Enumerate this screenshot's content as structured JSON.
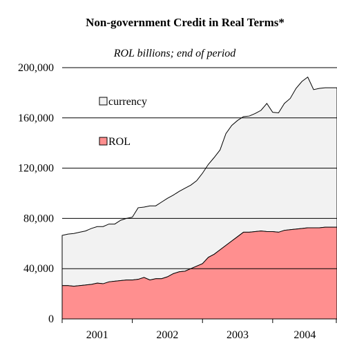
{
  "chart_data": {
    "type": "area",
    "stacked": true,
    "title": "Non-government Credit in Real Terms*",
    "subtitle": "ROL billions; end of period",
    "xlabel": "",
    "ylabel": "",
    "ylim": [
      0,
      200000
    ],
    "yticks": [
      "0",
      "40,000",
      "80,000",
      "120,000",
      "160,000",
      "200,000"
    ],
    "xticks": [
      "2001",
      "2002",
      "2003",
      "2004"
    ],
    "grid": "horizontal",
    "legend": "top-left",
    "x": [
      "2001-01",
      "2001-02",
      "2001-03",
      "2001-04",
      "2001-05",
      "2001-06",
      "2001-07",
      "2001-08",
      "2001-09",
      "2001-10",
      "2001-11",
      "2001-12",
      "2002-01",
      "2002-02",
      "2002-03",
      "2002-04",
      "2002-05",
      "2002-06",
      "2002-07",
      "2002-08",
      "2002-09",
      "2002-10",
      "2002-11",
      "2002-12",
      "2003-01",
      "2003-02",
      "2003-03",
      "2003-04",
      "2003-05",
      "2003-06",
      "2003-07",
      "2003-08",
      "2003-09",
      "2003-10",
      "2003-11",
      "2003-12",
      "2004-01",
      "2004-02",
      "2004-03",
      "2004-04",
      "2004-05",
      "2004-06",
      "2004-07",
      "2004-08",
      "2004-09",
      "2004-10",
      "2004-11",
      "2004-12"
    ],
    "series": [
      {
        "name": "ROL",
        "color": "#ff8f8f",
        "values": [
          26500,
          26500,
          26000,
          26500,
          27000,
          27500,
          28500,
          28000,
          29500,
          30000,
          30500,
          31000,
          31000,
          31500,
          33000,
          31000,
          32000,
          32000,
          33500,
          36000,
          37500,
          38000,
          40000,
          42000,
          44000,
          49000,
          51500,
          55000,
          58500,
          62000,
          65500,
          69000,
          69000,
          69500,
          70000,
          69500,
          69500,
          69000,
          70500,
          71000,
          71500,
          72000,
          72500,
          72500,
          72500,
          73000,
          73000,
          73000
        ]
      },
      {
        "name": "currency",
        "color": "#f2f2f2",
        "values": [
          40000,
          41000,
          42000,
          42500,
          43000,
          44500,
          45000,
          45500,
          46000,
          45500,
          48000,
          49000,
          50000,
          57000,
          56000,
          59000,
          58000,
          61000,
          62500,
          62500,
          64000,
          66000,
          66500,
          68000,
          72000,
          74000,
          77000,
          79500,
          89000,
          92000,
          92500,
          92000,
          92500,
          94000,
          96000,
          102000,
          95000,
          95000,
          101000,
          104500,
          112000,
          117000,
          120000,
          110000,
          111000,
          111000,
          111000,
          111000
        ]
      }
    ]
  }
}
